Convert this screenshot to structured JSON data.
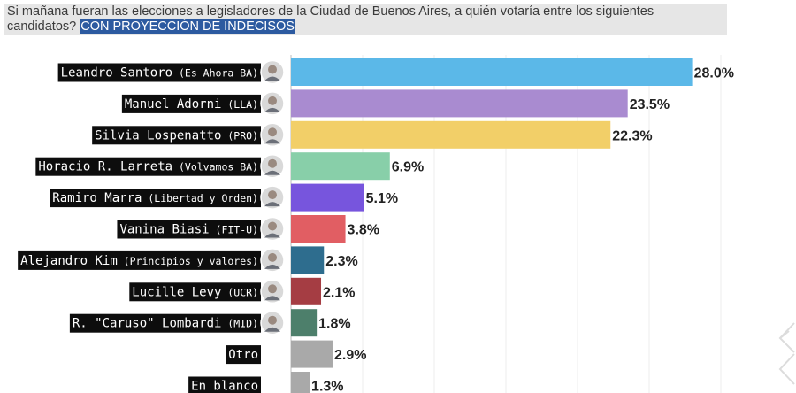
{
  "header": {
    "question": "Si mañana fueran las elecciones a legisladores de la Ciudad de Buenos Aires, a quién votaría entre los siguientes candidatos?",
    "highlight": "CON PROYECCIÓN DE INDECISOS"
  },
  "chart_data": {
    "type": "bar",
    "orientation": "horizontal",
    "title": "",
    "xlabel": "",
    "ylabel": "",
    "xlim": [
      0,
      30
    ],
    "grid": true,
    "legend": "none",
    "categories": [
      {
        "name": "Leandro Santoro",
        "party": "(Es Ahora BA)",
        "avatar": true
      },
      {
        "name": "Manuel Adorni",
        "party": "(LLA)",
        "avatar": true
      },
      {
        "name": "Silvia Lospenatto",
        "party": "(PRO)",
        "avatar": true
      },
      {
        "name": "Horacio R. Larreta",
        "party": "(Volvamos BA)",
        "avatar": true
      },
      {
        "name": "Ramiro Marra",
        "party": "(Libertad y Orden)",
        "avatar": true
      },
      {
        "name": "Vanina Biasi",
        "party": "(FIT-U)",
        "avatar": true
      },
      {
        "name": "Alejandro Kim",
        "party": "(Principios y valores)",
        "avatar": true
      },
      {
        "name": "Lucille Levy",
        "party": "(UCR)",
        "avatar": true
      },
      {
        "name": "R. \"Caruso\" Lombardi",
        "party": "(MID)",
        "avatar": true
      },
      {
        "name": "Otro",
        "party": "",
        "avatar": false
      },
      {
        "name": "En blanco",
        "party": "",
        "avatar": false
      }
    ],
    "values": [
      28.0,
      23.5,
      22.3,
      6.9,
      5.1,
      3.8,
      2.3,
      2.1,
      1.8,
      2.9,
      1.3
    ],
    "value_labels": [
      "28.0%",
      "23.5%",
      "22.3%",
      "6.9%",
      "5.1%",
      "3.8%",
      "2.3%",
      "2.1%",
      "1.8%",
      "2.9%",
      "1.3%"
    ],
    "colors": [
      "#5bb8e8",
      "#a98bd0",
      "#f2cf68",
      "#88cfa9",
      "#7755dd",
      "#e15e63",
      "#2e6d8e",
      "#a53d43",
      "#4d7f6b",
      "#a9a9a9",
      "#a9a9a9"
    ]
  }
}
